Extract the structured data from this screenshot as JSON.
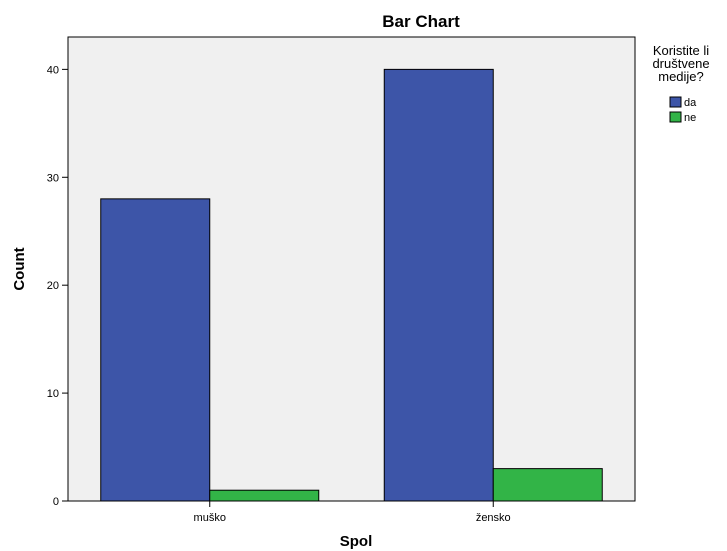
{
  "chart_data": {
    "type": "bar",
    "title": "Bar Chart",
    "xlabel": "Spol",
    "ylabel": "Count",
    "categories": [
      "muško",
      "žensko"
    ],
    "series": [
      {
        "name": "da",
        "values": [
          28,
          40
        ],
        "color": "#3d55a8"
      },
      {
        "name": "ne",
        "values": [
          1,
          3
        ],
        "color": "#32b447"
      }
    ],
    "ylim": [
      0,
      43
    ],
    "yticks": [
      0,
      10,
      20,
      30,
      40
    ],
    "grid": false,
    "plot_background": "#f0f0f0",
    "legend": {
      "title_lines": [
        "Koristite li",
        "društvene",
        "medije?"
      ],
      "placement": "right"
    }
  }
}
